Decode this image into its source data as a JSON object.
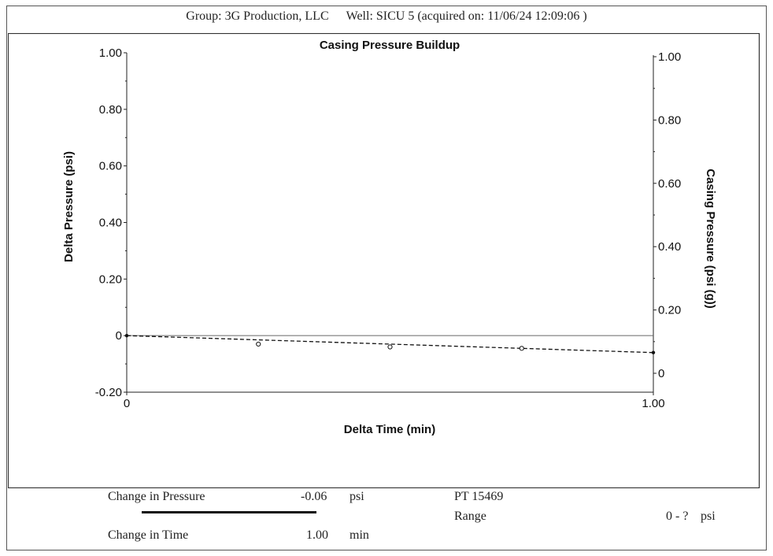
{
  "header": {
    "group": "Group: 3G Production, LLC",
    "well": "Well: SICU 5 (acquired on: 11/06/24 12:09:06 )"
  },
  "chart_data": {
    "type": "line",
    "title": "Casing Pressure Buildup",
    "xlabel": "Delta Time (min)",
    "ylabel": "Delta Pressure (psi)",
    "y2label": "Casing Pressure (psi (g))",
    "xlim": [
      0,
      1.0
    ],
    "ylim": [
      -0.2,
      1.0
    ],
    "y2lim": [
      0,
      1.0
    ],
    "x_ticks": [
      "0",
      "1.00"
    ],
    "y_ticks": [
      {
        "value": 1.0,
        "label": "1.00"
      },
      {
        "value": 0.8,
        "label": "0.80"
      },
      {
        "value": 0.6,
        "label": "0.60"
      },
      {
        "value": 0.4,
        "label": "0.40"
      },
      {
        "value": 0.2,
        "label": "0.20"
      },
      {
        "value": 0.0,
        "label": "0"
      },
      {
        "value": -0.2,
        "label": "-0.20"
      }
    ],
    "y2_ticks": [
      {
        "value": 1.0,
        "label": "1.00"
      },
      {
        "value": 0.8,
        "label": "0.80"
      },
      {
        "value": 0.6,
        "label": "0.60"
      },
      {
        "value": 0.4,
        "label": "0.40"
      },
      {
        "value": 0.2,
        "label": "0.20"
      },
      {
        "value": 0.0,
        "label": "0"
      }
    ],
    "zero_line": 0,
    "series": [
      {
        "style": "dashed",
        "points": [
          [
            0,
            0
          ],
          [
            1.0,
            -0.06
          ]
        ]
      },
      {
        "style": "open-circle",
        "points": [
          [
            0.25,
            -0.03
          ],
          [
            0.5,
            -0.04
          ],
          [
            0.75,
            -0.045
          ]
        ]
      }
    ]
  },
  "footer": {
    "change_pressure_label": "Change in Pressure",
    "change_pressure_value": "-0.06",
    "change_pressure_unit": "psi",
    "change_time_label": "Change in Time",
    "change_time_value": "1.00",
    "change_time_unit": "min",
    "pt_label": "PT 15469",
    "range_label": "Range",
    "range_value": "0 - ?",
    "range_unit": "psi"
  }
}
